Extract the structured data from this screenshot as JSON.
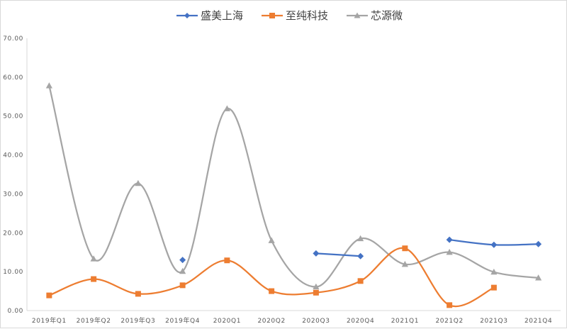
{
  "chart_data": {
    "type": "line",
    "title": "",
    "xlabel": "",
    "ylabel": "",
    "ylim": [
      0,
      70
    ],
    "y_ticks": [
      "0.00",
      "10.00",
      "20.00",
      "30.00",
      "40.00",
      "50.00",
      "60.00",
      "70.00"
    ],
    "grid": false,
    "smooth": true,
    "legend_position": "top",
    "categories": [
      "2019年Q1",
      "2019年Q2",
      "2019年Q3",
      "2019年Q4",
      "2020Q1",
      "2020Q2",
      "2020Q3",
      "2020Q4",
      "2021Q1",
      "2021Q2",
      "2021Q3",
      "2021Q4"
    ],
    "series": [
      {
        "name": "盛美上海",
        "color": "#4472c4",
        "marker": "diamond",
        "values": [
          null,
          null,
          null,
          13.0,
          null,
          null,
          14.7,
          14.0,
          null,
          18.2,
          16.9,
          17.1
        ]
      },
      {
        "name": "至纯科技",
        "color": "#ed7d31",
        "marker": "square",
        "values": [
          3.9,
          8.1,
          4.3,
          6.5,
          12.9,
          5.0,
          4.6,
          7.6,
          16.0,
          1.4,
          5.9,
          null
        ]
      },
      {
        "name": "芯源微",
        "color": "#a5a5a5",
        "marker": "triangle",
        "values": [
          57.8,
          13.3,
          32.7,
          10.1,
          51.9,
          18.0,
          6.1,
          18.5,
          11.9,
          15.0,
          9.9,
          8.4
        ]
      }
    ]
  }
}
